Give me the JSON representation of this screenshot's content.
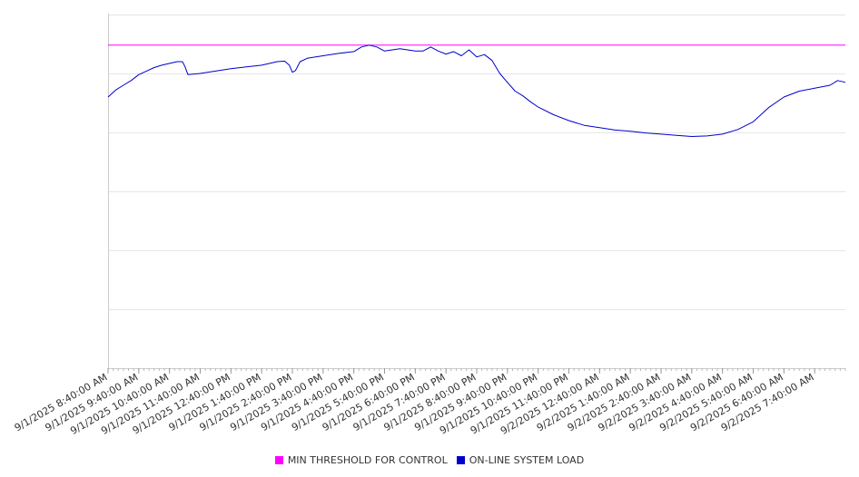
{
  "chart_data": {
    "type": "line",
    "title": "",
    "xlabel": "",
    "ylabel": "",
    "ylim": [
      0,
      6
    ],
    "y_ticks_labeled": false,
    "grid": true,
    "legend_position": "bottom",
    "x_tick_labels": [
      "9/1/2025 8:40:00 AM",
      "9/1/2025 9:40:00 AM",
      "9/1/2025 10:40:00 AM",
      "9/1/2025 11:40:00 AM",
      "9/1/2025 12:40:00 PM",
      "9/1/2025 1:40:00 PM",
      "9/1/2025 2:40:00 PM",
      "9/1/2025 3:40:00 PM",
      "9/1/2025 4:40:00 PM",
      "9/1/2025 5:40:00 PM",
      "9/1/2025 6:40:00 PM",
      "9/1/2025 7:40:00 PM",
      "9/1/2025 8:40:00 PM",
      "9/1/2025 9:40:00 PM",
      "9/1/2025 10:40:00 PM",
      "9/1/2025 11:40:00 PM",
      "9/2/2025 12:40:00 AM",
      "9/2/2025 1:40:00 AM",
      "9/2/2025 2:40:00 AM",
      "9/2/2025 3:40:00 AM",
      "9/2/2025 4:40:00 AM",
      "9/2/2025 5:40:00 AM",
      "9/2/2025 6:40:00 AM",
      "9/2/2025 7:40:00 AM"
    ],
    "x_range_hours": [
      0,
      24
    ],
    "series": [
      {
        "name": "MIN THRESHOLD FOR CONTROL",
        "color": "#ff00ff",
        "x": [
          0,
          24
        ],
        "values": [
          5.48,
          5.48
        ]
      },
      {
        "name": "ON-LINE SYSTEM LOAD",
        "color": "#0000cc",
        "x": [
          0,
          0.25,
          0.5,
          0.75,
          1.0,
          1.25,
          1.5,
          1.75,
          2.0,
          2.25,
          2.42,
          2.5,
          2.6,
          3.0,
          3.5,
          4.0,
          4.5,
          5.0,
          5.5,
          5.75,
          5.9,
          6.0,
          6.1,
          6.25,
          6.5,
          7.0,
          7.5,
          8.0,
          8.25,
          8.5,
          8.75,
          9.0,
          9.25,
          9.5,
          9.75,
          10.0,
          10.25,
          10.5,
          10.75,
          11.0,
          11.25,
          11.5,
          11.75,
          12.0,
          12.25,
          12.5,
          12.75,
          13.0,
          13.25,
          13.5,
          13.75,
          14.0,
          14.5,
          15.0,
          15.5,
          16.0,
          16.5,
          17.0,
          17.5,
          18.0,
          18.5,
          19.0,
          19.5,
          20.0,
          20.5,
          21.0,
          21.5,
          22.0,
          22.5,
          23.0,
          23.5,
          23.75,
          24.0
        ],
        "values": [
          4.6,
          4.72,
          4.8,
          4.88,
          4.98,
          5.04,
          5.1,
          5.14,
          5.17,
          5.2,
          5.2,
          5.12,
          4.98,
          5.0,
          5.04,
          5.08,
          5.11,
          5.14,
          5.2,
          5.21,
          5.14,
          5.02,
          5.05,
          5.2,
          5.26,
          5.3,
          5.34,
          5.37,
          5.45,
          5.48,
          5.45,
          5.38,
          5.4,
          5.42,
          5.4,
          5.38,
          5.38,
          5.45,
          5.38,
          5.33,
          5.37,
          5.3,
          5.4,
          5.28,
          5.32,
          5.22,
          5.0,
          4.85,
          4.7,
          4.62,
          4.52,
          4.43,
          4.3,
          4.2,
          4.12,
          4.08,
          4.04,
          4.02,
          3.99,
          3.97,
          3.95,
          3.93,
          3.94,
          3.97,
          4.05,
          4.18,
          4.42,
          4.6,
          4.7,
          4.75,
          4.8,
          4.88,
          4.85
        ]
      }
    ]
  }
}
